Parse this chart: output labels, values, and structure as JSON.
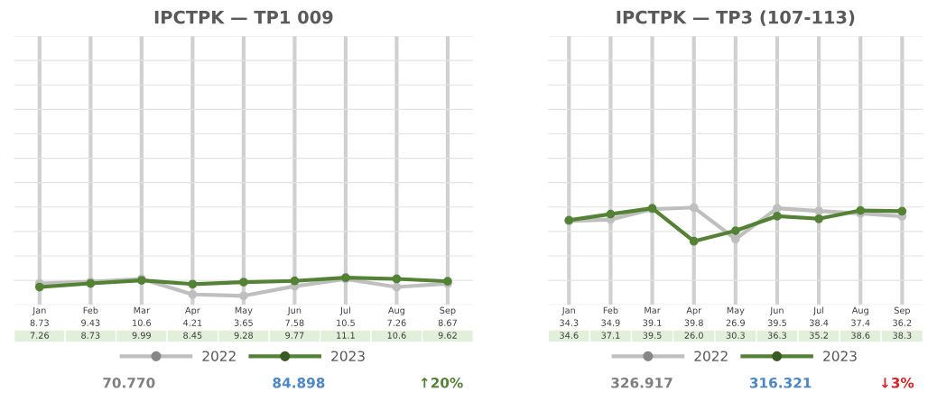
{
  "chart_data": [
    {
      "type": "line",
      "title": "IPCTPK — TP1 009",
      "categories": [
        "Jan",
        "Feb",
        "Mar",
        "Apr",
        "May",
        "Jun",
        "Jul",
        "Aug",
        "Sep"
      ],
      "series": [
        {
          "name": "2022",
          "color": "#bfbfbf",
          "values": [
            8.73,
            9.43,
            10.6,
            4.21,
            3.65,
            7.58,
            10.5,
            7.26,
            8.67
          ],
          "value_labels": [
            "8.73",
            "9.43",
            "10.6",
            "4.21",
            "3.65",
            "7.58",
            "10.5",
            "7.26",
            "8.67"
          ]
        },
        {
          "name": "2023",
          "color": "#548235",
          "values": [
            7.26,
            8.73,
            9.99,
            8.45,
            9.28,
            9.77,
            11.1,
            10.6,
            9.62
          ],
          "value_labels": [
            "7.26",
            "8.73",
            "9.99",
            "8.45",
            "9.28",
            "9.77",
            "11.1",
            "10.6",
            "9.62"
          ]
        }
      ],
      "ylim": [
        0,
        110
      ],
      "yticks": [
        {
          "value": 0,
          "label": null
        },
        {
          "value": 10,
          "label": null
        },
        {
          "value": 20,
          "label": null
        },
        {
          "value": 30,
          "label": null
        },
        {
          "value": 40,
          "label": null
        },
        {
          "value": 50,
          "label": null
        },
        {
          "value": 60,
          "label": null
        },
        {
          "value": 70,
          "label": null
        },
        {
          "value": 80,
          "label": null
        },
        {
          "value": 90,
          "label": null
        },
        {
          "value": 100,
          "label": null
        },
        {
          "value": 110,
          "label": null
        }
      ],
      "grid": true,
      "legend": "bottom",
      "marker": "circle",
      "tick_labels": false,
      "annotations": [
        "70.770",
        "84.898",
        "↑20%"
      ]
    },
    {
      "type": "line",
      "title": "IPCTPK — TP3 (107-113)",
      "categories": [
        "Jan",
        "Feb",
        "Mar",
        "Apr",
        "May",
        "Jun",
        "Jul",
        "Aug",
        "Sep"
      ],
      "series": [
        {
          "name": "2022",
          "color": "#bfbfbf",
          "values": [
            34.3,
            34.9,
            39.1,
            39.8,
            26.9,
            39.5,
            38.4,
            37.4,
            36.2
          ],
          "value_labels": [
            "34.3",
            "34.9",
            "39.1",
            "39.8",
            "26.9",
            "39.5",
            "38.4",
            "37.4",
            "36.2"
          ]
        },
        {
          "name": "2023",
          "color": "#548235",
          "values": [
            34.6,
            37.1,
            39.5,
            26.0,
            30.3,
            36.3,
            35.2,
            38.6,
            38.3
          ],
          "value_labels": [
            "34.6",
            "37.1",
            "39.5",
            "26.0",
            "30.3",
            "36.3",
            "35.2",
            "38.6",
            "38.3"
          ]
        }
      ],
      "ylim": [
        0,
        110
      ],
      "yticks": [
        {
          "value": 0,
          "label": null
        },
        {
          "value": 10,
          "label": null
        },
        {
          "value": 20,
          "label": null
        },
        {
          "value": 30,
          "label": null
        },
        {
          "value": 40,
          "label": null
        },
        {
          "value": 50,
          "label": null
        },
        {
          "value": 60,
          "label": null
        },
        {
          "value": 70,
          "label": null
        },
        {
          "value": 80,
          "label": null
        },
        {
          "value": 90,
          "label": null
        },
        {
          "value": 100,
          "label": null
        },
        {
          "value": 110,
          "label": null
        }
      ],
      "grid": true,
      "legend": "bottom",
      "marker": "circle",
      "tick_labels": false,
      "annotations": [
        "326.917",
        "316.321",
        "↓3%"
      ]
    }
  ]
}
